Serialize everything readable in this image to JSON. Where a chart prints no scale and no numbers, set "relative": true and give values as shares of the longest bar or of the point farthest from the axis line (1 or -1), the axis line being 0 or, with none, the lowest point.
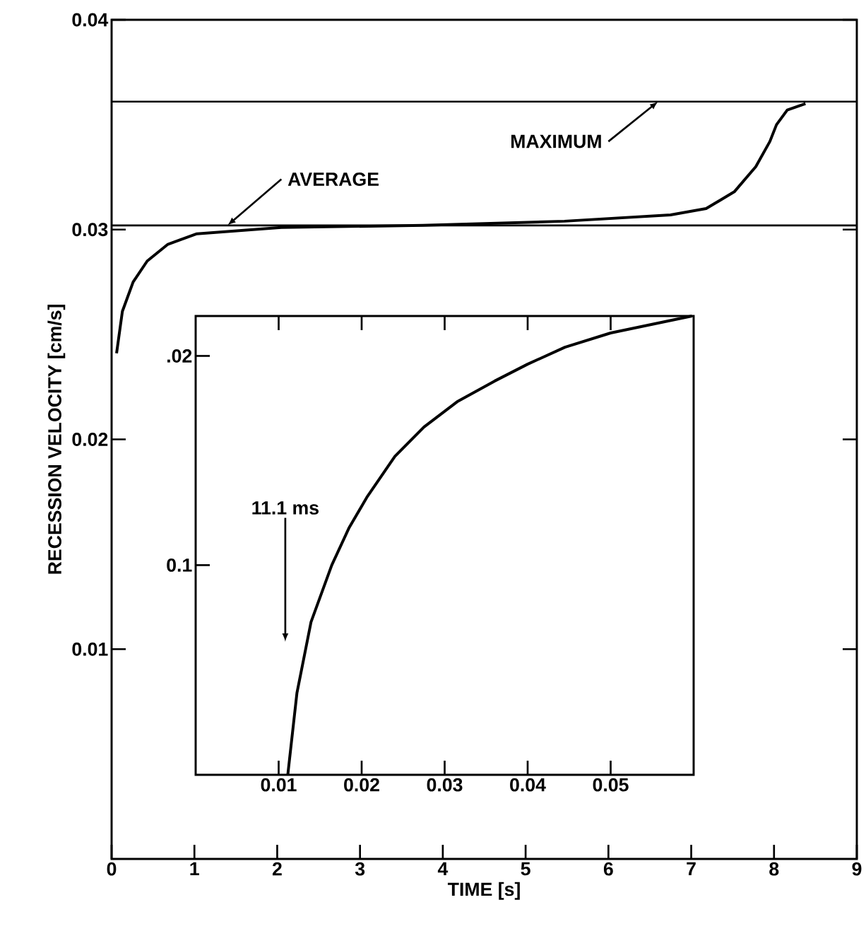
{
  "chart_data": [
    {
      "type": "line",
      "xlabel": "TIME [s]",
      "ylabel": "RECESSION VELOCITY [cm/s]",
      "xlim": [
        0,
        9
      ],
      "ylim": [
        0,
        0.04
      ],
      "xticks": [
        0,
        1,
        2,
        3,
        4,
        5,
        6,
        7,
        8,
        9
      ],
      "yticks": [
        0.01,
        0.02,
        0.03,
        0.04
      ],
      "series": [
        {
          "color": "#000000",
          "x": [
            0.06,
            0.13,
            0.26,
            0.43,
            0.68,
            1.03,
            2.05,
            3.76,
            5.47,
            6.75,
            7.18,
            7.52,
            7.78,
            7.95,
            8.03,
            8.16,
            8.38
          ],
          "values": [
            0.0241,
            0.0261,
            0.0275,
            0.0285,
            0.0293,
            0.0298,
            0.0301,
            0.0302,
            0.0304,
            0.0307,
            0.031,
            0.0318,
            0.033,
            0.0342,
            0.035,
            0.0357,
            0.036
          ]
        }
      ],
      "ref_lines": [
        {
          "axis": "y",
          "value": 0.0302,
          "label": "AVERAGE"
        },
        {
          "axis": "y",
          "value": 0.0361,
          "label": "MAXIMUM"
        }
      ]
    },
    {
      "type": "line",
      "relative": true,
      "xlim": [
        0,
        0.06
      ],
      "xticks": [
        0.01,
        0.02,
        0.03,
        0.04,
        0.05
      ],
      "series": [
        {
          "color": "#000000",
          "x": [
            0.0111,
            0.0122,
            0.0139,
            0.0164,
            0.0185,
            0.0207,
            0.024,
            0.0275,
            0.0315,
            0.036,
            0.04,
            0.0445,
            0.05,
            0.055,
            0.0598
          ],
          "values": [
            0,
            0.178,
            0.333,
            0.457,
            0.539,
            0.607,
            0.694,
            0.758,
            0.813,
            0.858,
            0.895,
            0.932,
            0.963,
            0.982,
            1
          ]
        }
      ],
      "annotations": [
        ".02",
        "0.1",
        "11.1 ms"
      ]
    }
  ]
}
